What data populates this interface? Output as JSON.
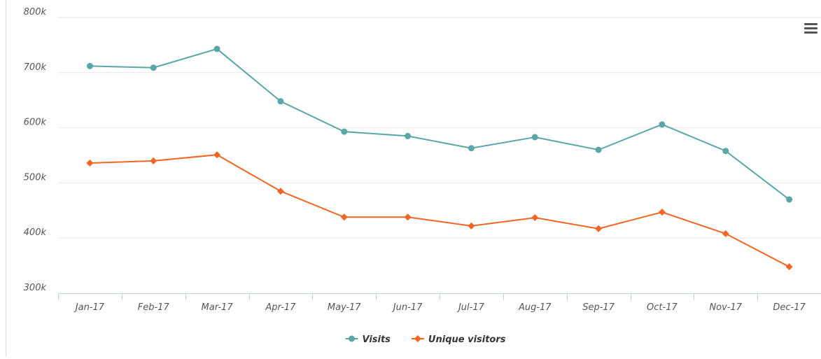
{
  "chart_data": {
    "type": "line",
    "categories": [
      "Jan-17",
      "Feb-17",
      "Mar-17",
      "Apr-17",
      "May-17",
      "Jun-17",
      "Jul-17",
      "Aug-17",
      "Sep-17",
      "Oct-17",
      "Nov-17",
      "Dec-17"
    ],
    "series": [
      {
        "name": "Visits",
        "color": "#5ba6a6",
        "marker": "circle",
        "values": [
          712000,
          709000,
          743000,
          648000,
          593000,
          585000,
          563000,
          583000,
          560000,
          606000,
          558000,
          470000
        ]
      },
      {
        "name": "Unique visitors",
        "color": "#f26522",
        "marker": "diamond",
        "values": [
          536000,
          540000,
          551000,
          485000,
          438000,
          438000,
          422000,
          437000,
          417000,
          447000,
          408000,
          348000
        ]
      }
    ],
    "ylim": [
      300000,
      800000
    ],
    "yticks": [
      {
        "value": 300000,
        "label": "300k"
      },
      {
        "value": 400000,
        "label": "400k"
      },
      {
        "value": 500000,
        "label": "500k"
      },
      {
        "value": 600000,
        "label": "600k"
      },
      {
        "value": 700000,
        "label": "700k"
      },
      {
        "value": 800000,
        "label": "800k"
      }
    ],
    "grid": true,
    "legend": "bottom"
  }
}
